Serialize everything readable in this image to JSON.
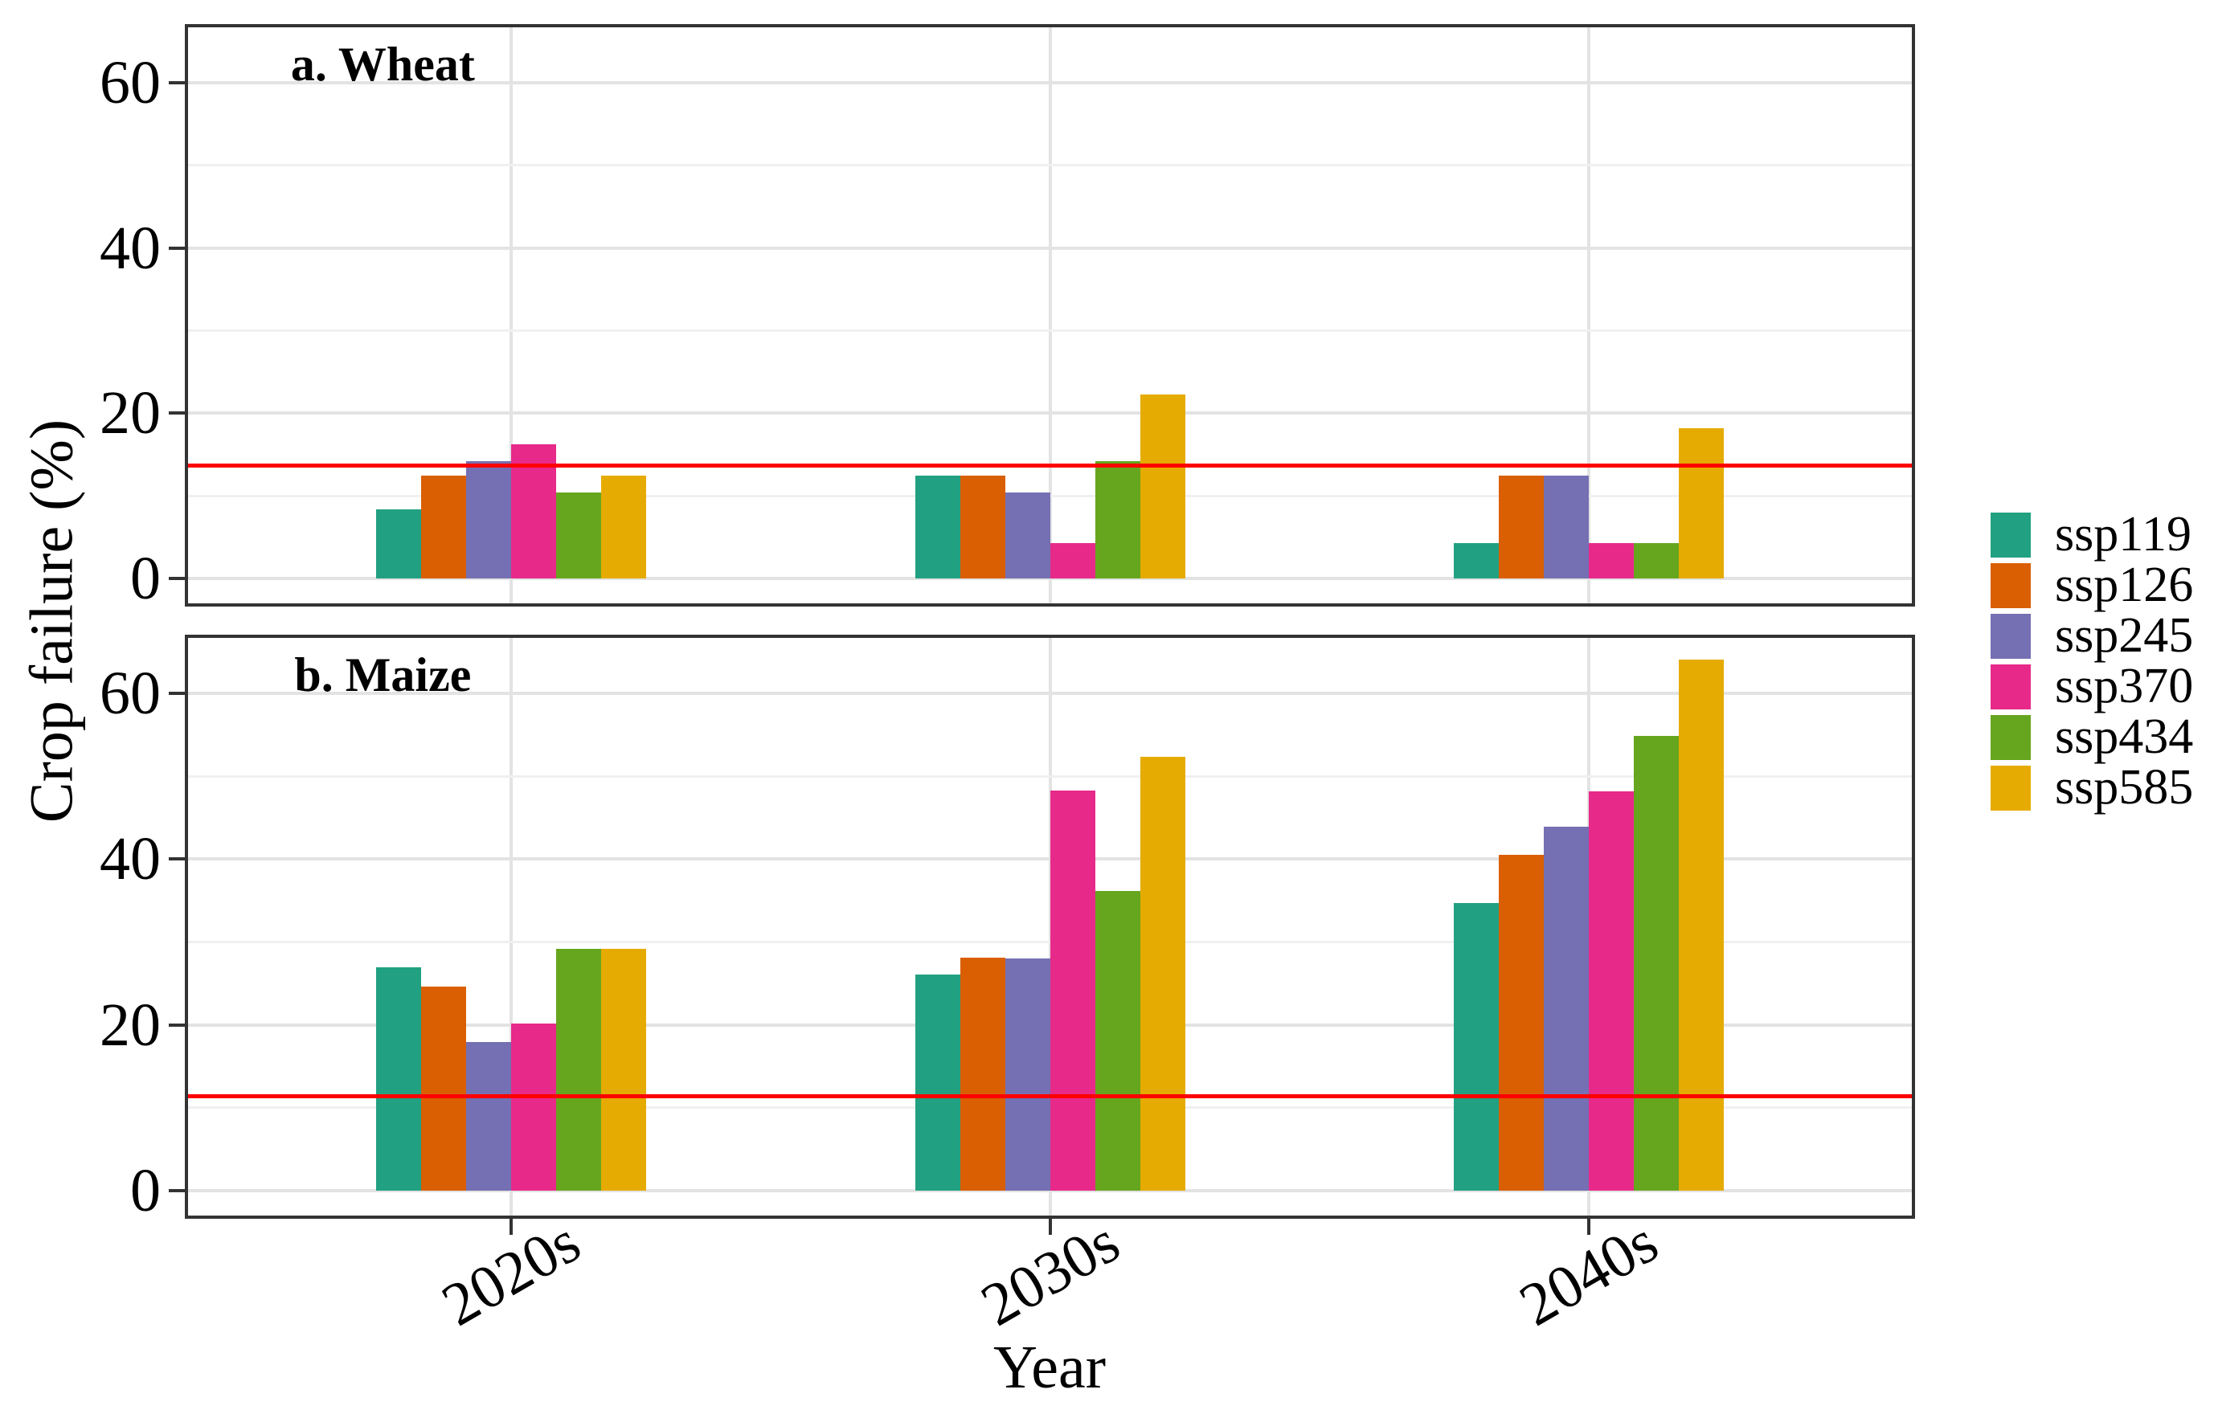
{
  "figure": {
    "y_axis_title": "Crop failure (%)",
    "x_axis_title": "Year"
  },
  "legend": {
    "items": [
      {
        "label": "ssp119",
        "color": "#21A181"
      },
      {
        "label": "ssp126",
        "color": "#D95F02"
      },
      {
        "label": "ssp245",
        "color": "#7570B3"
      },
      {
        "label": "ssp370",
        "color": "#E7298A"
      },
      {
        "label": "ssp434",
        "color": "#66A61E"
      },
      {
        "label": "ssp585",
        "color": "#E6AB02"
      }
    ]
  },
  "chart_data": {
    "type": "bar",
    "title": "",
    "xlabel": "Year",
    "ylabel": "Crop failure (%)",
    "categories": [
      "2020s",
      "2030s",
      "2040s"
    ],
    "legend_position": "right",
    "grid": true,
    "panels": [
      {
        "id": "wheat",
        "title": "a. Wheat",
        "ylim": [
          -3,
          66.7
        ],
        "yticks": [
          0,
          20,
          40,
          60
        ],
        "yticks_minor": [
          10,
          30,
          50
        ],
        "reference_line_y": 13.7,
        "reference_line_color": "#FF0000",
        "series": [
          {
            "name": "ssp119",
            "color": "#21A181",
            "values": [
              8.4,
              12.5,
              4.3
            ]
          },
          {
            "name": "ssp126",
            "color": "#D95F02",
            "values": [
              12.5,
              12.5,
              12.5
            ]
          },
          {
            "name": "ssp245",
            "color": "#7570B3",
            "values": [
              14.2,
              10.4,
              12.5
            ]
          },
          {
            "name": "ssp370",
            "color": "#E7298A",
            "values": [
              16.2,
              4.3,
              4.3
            ]
          },
          {
            "name": "ssp434",
            "color": "#66A61E",
            "values": [
              10.4,
              14.2,
              4.3
            ]
          },
          {
            "name": "ssp585",
            "color": "#E6AB02",
            "values": [
              12.5,
              22.3,
              18.2
            ]
          }
        ]
      },
      {
        "id": "maize",
        "title": "b. Maize",
        "ylim": [
          -3,
          66.7
        ],
        "yticks": [
          0,
          20,
          40,
          60
        ],
        "yticks_minor": [
          10,
          30,
          50
        ],
        "reference_line_y": 11.4,
        "reference_line_color": "#FF0000",
        "series": [
          {
            "name": "ssp119",
            "color": "#21A181",
            "values": [
              27.0,
              26.1,
              34.7
            ]
          },
          {
            "name": "ssp126",
            "color": "#D95F02",
            "values": [
              24.6,
              28.1,
              40.5
            ]
          },
          {
            "name": "ssp245",
            "color": "#7570B3",
            "values": [
              17.9,
              28.0,
              43.9
            ]
          },
          {
            "name": "ssp370",
            "color": "#E7298A",
            "values": [
              20.2,
              48.3,
              48.2
            ]
          },
          {
            "name": "ssp434",
            "color": "#66A61E",
            "values": [
              29.2,
              36.2,
              54.9
            ]
          },
          {
            "name": "ssp585",
            "color": "#E6AB02",
            "values": [
              29.2,
              52.4,
              64.1
            ]
          }
        ]
      }
    ]
  }
}
